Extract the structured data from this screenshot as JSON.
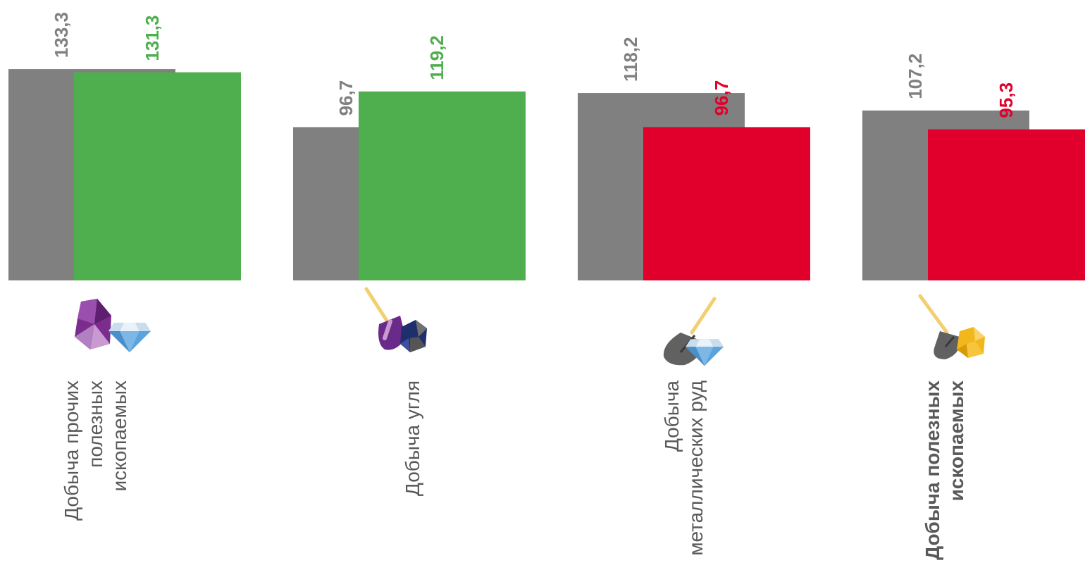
{
  "chart_data": {
    "type": "bar",
    "categories": [
      {
        "lines": [
          "Добыча прочих",
          "полезных",
          "ископаемых"
        ],
        "bold": false,
        "icon": "gems-icon"
      },
      {
        "lines": [
          "Добыча угля"
        ],
        "bold": false,
        "icon": "coal-shovel-icon"
      },
      {
        "lines": [
          "Добыча",
          "металлических руд"
        ],
        "bold": false,
        "icon": "ore-shovel-diamond-icon"
      },
      {
        "lines": [
          "Добыча полезных",
          "ископаемых"
        ],
        "bold": true,
        "icon": "gold-shovel-icon"
      }
    ],
    "series": [
      {
        "values": [
          133.3,
          96.7,
          118.2,
          107.2
        ],
        "labels": [
          "133,3",
          "96,7",
          "118,2",
          "107,2"
        ],
        "color": "#808080"
      },
      {
        "values": [
          131.3,
          119.2,
          96.7,
          95.3
        ],
        "labels": [
          "131,3",
          "119,2",
          "96,7",
          "95,3"
        ],
        "colors": [
          "#4faf4f",
          "#4faf4f",
          "#e0002b",
          "#e0002b"
        ]
      }
    ],
    "overlap": true,
    "grid": false,
    "legend": "none"
  }
}
